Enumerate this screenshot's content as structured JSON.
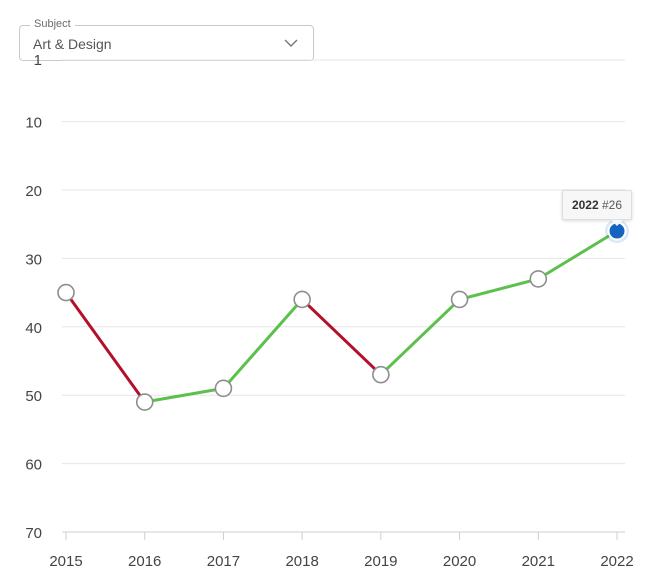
{
  "subject_select": {
    "legend": "Subject",
    "value": "Art & Design",
    "icon": "chevron-down-icon"
  },
  "tooltip": {
    "year": "2022",
    "rank": "#26"
  },
  "colors": {
    "rising": "#5cc04c",
    "falling": "#b3102a",
    "highlight": "#1464c0",
    "grid": "#e6e6e6"
  },
  "chart_data": {
    "type": "line",
    "title": "",
    "xlabel": "",
    "ylabel": "",
    "x": [
      "2015",
      "2016",
      "2017",
      "2018",
      "2019",
      "2020",
      "2021",
      "2022"
    ],
    "series": [
      {
        "values": [
          35,
          51,
          49,
          36,
          47,
          36,
          33,
          26
        ]
      }
    ],
    "y_axis": {
      "reversed": true,
      "ylim": [
        1,
        70
      ],
      "ticks": [
        1,
        10,
        20,
        30,
        40,
        50,
        60,
        70
      ]
    },
    "segment_coloring": "green when rank improves, red when rank worsens",
    "highlighted_point": "2022",
    "grid": true,
    "legend": "none"
  }
}
